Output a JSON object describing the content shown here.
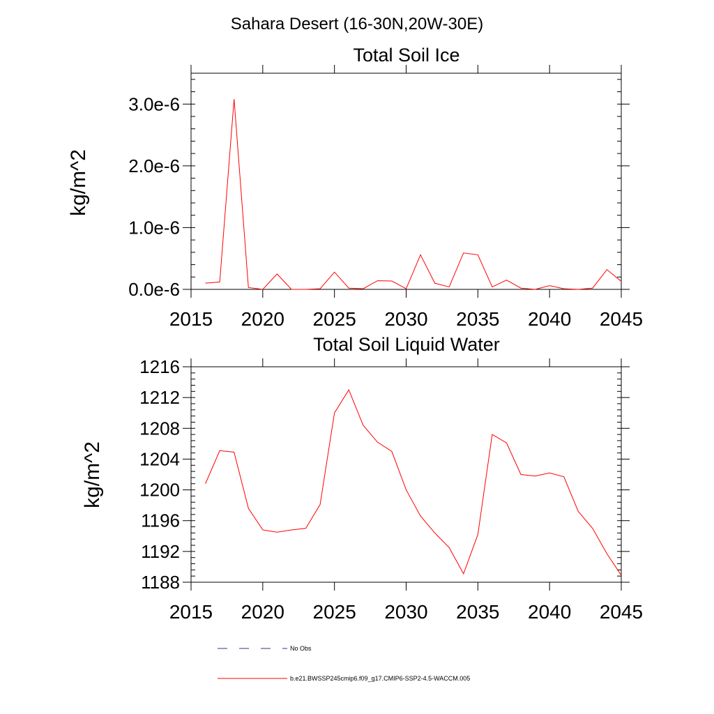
{
  "figure_title": "Sahara Desert (16-30N,20W-30E)",
  "legend": {
    "no_obs": "No Obs",
    "model": "b.e21.BWSSP245cmip6.f09_g17.CMIP6-SSP2-4.5-WACCM.005"
  },
  "colors": {
    "series": "#ff0000",
    "no_obs": "#33337f",
    "axes": "#000000"
  },
  "chart_data": [
    {
      "type": "line",
      "title": "Total Soil Ice",
      "ylabel": "kg/m^2",
      "xlabel": "",
      "xlim": [
        2015,
        2045
      ],
      "ylim": [
        0,
        3.5e-06
      ],
      "x_ticks": [
        "2015",
        "2020",
        "2025",
        "2030",
        "2035",
        "2040",
        "2045"
      ],
      "y_ticks": [
        "0.0e-6",
        "1.0e-6",
        "2.0e-6",
        "3.0e-6"
      ],
      "y_tick_values": [
        0,
        1e-06,
        2e-06,
        3e-06
      ],
      "grid": false,
      "series": [
        {
          "x": [
            2016,
            2017,
            2018,
            2019,
            2020,
            2021,
            2022,
            2023,
            2024,
            2025,
            2026,
            2027,
            2028,
            2029,
            2030,
            2031,
            2032,
            2033,
            2034,
            2035,
            2036,
            2037,
            2038,
            2039,
            2040,
            2041,
            2042,
            2043,
            2044,
            2045
          ],
          "values": [
            1e-07,
            1.2e-07,
            3.08e-06,
            3e-08,
            0.0,
            2.5e-07,
            0.0,
            0.0,
            1e-08,
            2.8e-07,
            2e-08,
            1e-08,
            1.4e-07,
            1.35e-07,
            1e-08,
            5.6e-07,
            1e-07,
            4e-08,
            5.9e-07,
            5.6e-07,
            4e-08,
            1.5e-07,
            2e-08,
            0.0,
            6e-08,
            1e-08,
            0.0,
            2e-08,
            3.2e-07,
            1.3e-07
          ]
        }
      ]
    },
    {
      "type": "line",
      "title": "Total Soil Liquid Water",
      "ylabel": "kg/m^2",
      "xlabel": "",
      "xlim": [
        2015,
        2045
      ],
      "ylim": [
        1188,
        1216
      ],
      "x_ticks": [
        "2015",
        "2020",
        "2025",
        "2030",
        "2035",
        "2040",
        "2045"
      ],
      "y_ticks": [
        "1188",
        "1192",
        "1196",
        "1200",
        "1204",
        "1208",
        "1212",
        "1216"
      ],
      "y_tick_values": [
        1188,
        1192,
        1196,
        1200,
        1204,
        1208,
        1212,
        1216
      ],
      "grid": false,
      "series": [
        {
          "x": [
            2016,
            2017,
            2018,
            2019,
            2020,
            2021,
            2022,
            2023,
            2024,
            2025,
            2026,
            2027,
            2028,
            2029,
            2030,
            2031,
            2032,
            2033,
            2034,
            2035,
            2036,
            2037,
            2038,
            2039,
            2040,
            2041,
            2042,
            2043,
            2044,
            2045
          ],
          "values": [
            1200.8,
            1205.1,
            1204.9,
            1197.6,
            1194.8,
            1194.5,
            1194.8,
            1195.0,
            1198.1,
            1210.0,
            1213.0,
            1208.4,
            1206.2,
            1205.0,
            1200.0,
            1196.6,
            1194.4,
            1192.5,
            1189.1,
            1194.2,
            1207.2,
            1206.1,
            1202.0,
            1201.8,
            1202.2,
            1201.7,
            1197.2,
            1195.0,
            1191.7,
            1188.9
          ]
        }
      ]
    }
  ]
}
